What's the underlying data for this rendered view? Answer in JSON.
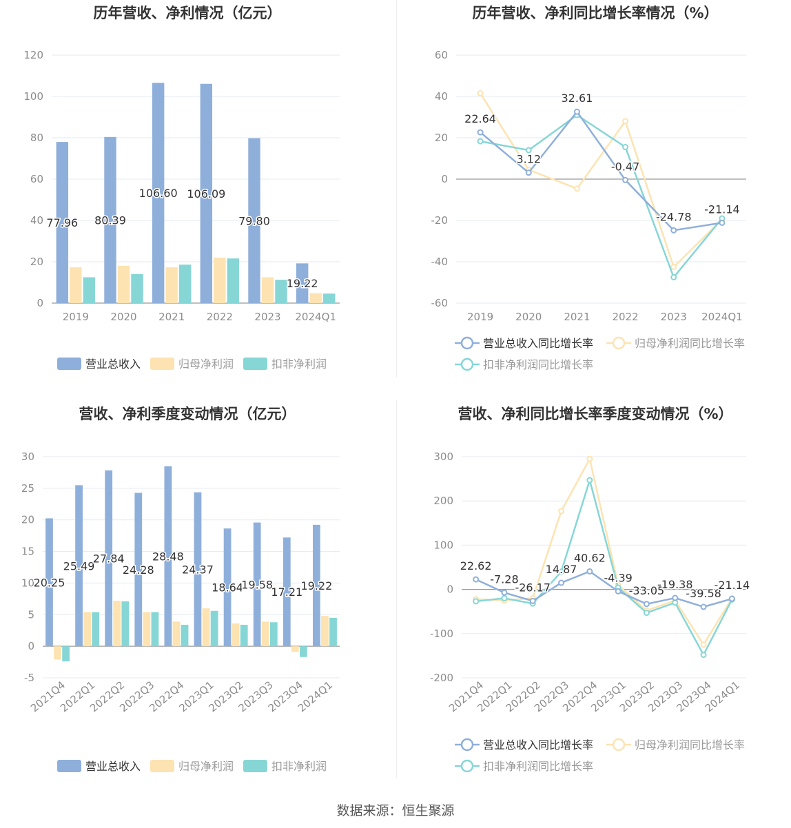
{
  "colors": {
    "revenue": "#8fafdb",
    "net_profit": "#fde3b1",
    "deducted_profit": "#86d6d6",
    "grid": "#e6e9f0",
    "axis_text": "#8c8c8c",
    "title": "#333333",
    "label": "#333333"
  },
  "chart_data": [
    {
      "id": "annual-amounts",
      "type": "bar",
      "title": "历年营收、净利情况（亿元）",
      "categories": [
        "2019",
        "2020",
        "2021",
        "2022",
        "2023",
        "2024Q1"
      ],
      "ylim": [
        0,
        120
      ],
      "yticks": [
        0,
        20,
        40,
        60,
        80,
        100,
        120
      ],
      "series": [
        {
          "name": "营业总收入",
          "color": "#8fafdb",
          "values": [
            77.96,
            80.39,
            106.6,
            106.09,
            79.8,
            19.22
          ],
          "labels": [
            "77.96",
            "80.39",
            "106.60",
            "106.09",
            "79.80",
            "19.22"
          ]
        },
        {
          "name": "归母净利润",
          "color": "#fde3b1",
          "values": [
            17.3,
            18.0,
            17.3,
            22.0,
            12.5,
            4.8
          ]
        },
        {
          "name": "扣非净利润",
          "color": "#86d6d6",
          "values": [
            12.5,
            14.0,
            18.6,
            21.6,
            11.3,
            4.6
          ]
        }
      ]
    },
    {
      "id": "annual-growth",
      "type": "line",
      "title": "历年营收、净利同比增长率情况（%）",
      "categories": [
        "2019",
        "2020",
        "2021",
        "2022",
        "2023",
        "2024Q1"
      ],
      "ylim": [
        -60,
        60
      ],
      "yticks": [
        -60,
        -40,
        -20,
        0,
        20,
        40,
        60
      ],
      "series": [
        {
          "name": "营业总收入同比增长率",
          "color": "#8fafdb",
          "values": [
            22.64,
            3.12,
            32.61,
            -0.47,
            -24.78,
            -21.14
          ],
          "labels": [
            "22.64",
            "3.12",
            "32.61",
            "-0.47",
            "-24.78",
            "-21.14"
          ]
        },
        {
          "name": "归母净利润同比增长率",
          "color": "#fde3b1",
          "values": [
            41.5,
            4.5,
            -4.6,
            28.0,
            -42.5,
            -19.5
          ]
        },
        {
          "name": "扣非净利润同比增长率",
          "color": "#86d6d6",
          "values": [
            18.3,
            14.0,
            31.0,
            15.5,
            -47.5,
            -19.0
          ]
        }
      ]
    },
    {
      "id": "quarterly-amounts",
      "type": "bar",
      "title": "营收、净利季度变动情况（亿元）",
      "categories": [
        "2021Q4",
        "2022Q1",
        "2022Q2",
        "2022Q3",
        "2022Q4",
        "2023Q1",
        "2023Q2",
        "2023Q3",
        "2023Q4",
        "2024Q1"
      ],
      "ylim": [
        -5,
        30
      ],
      "yticks": [
        -5,
        0,
        5,
        10,
        15,
        20,
        25,
        30
      ],
      "series": [
        {
          "name": "营业总收入",
          "color": "#8fafdb",
          "values": [
            20.25,
            25.49,
            27.84,
            24.28,
            28.48,
            24.37,
            18.64,
            19.58,
            17.21,
            19.22
          ],
          "labels": [
            "20.25",
            "25.49",
            "27.84",
            "24.28",
            "28.48",
            "24.37",
            "18.64",
            "19.58",
            "17.21",
            "19.22"
          ]
        },
        {
          "name": "归母净利润",
          "color": "#fde3b1",
          "values": [
            -2.1,
            5.4,
            7.2,
            5.4,
            3.9,
            6.0,
            3.6,
            3.9,
            -0.9,
            4.8
          ]
        },
        {
          "name": "扣非净利润",
          "color": "#86d6d6",
          "values": [
            -2.4,
            5.4,
            7.1,
            5.4,
            3.4,
            5.6,
            3.4,
            3.8,
            -1.7,
            4.5
          ]
        }
      ]
    },
    {
      "id": "quarterly-growth",
      "type": "line",
      "title": "营收、净利同比增长率季度变动情况（%）",
      "categories": [
        "2021Q4",
        "2022Q1",
        "2022Q2",
        "2022Q3",
        "2022Q4",
        "2023Q1",
        "2023Q2",
        "2023Q3",
        "2023Q4",
        "2024Q1"
      ],
      "ylim": [
        -200,
        300
      ],
      "yticks": [
        -200,
        -100,
        0,
        100,
        200,
        300
      ],
      "series": [
        {
          "name": "营业总收入同比增长率",
          "color": "#8fafdb",
          "values": [
            22.62,
            -7.28,
            -26.17,
            14.87,
            40.62,
            -4.39,
            -33.05,
            -19.38,
            -39.58,
            -21.14
          ],
          "labels": [
            "22.62",
            "-7.28",
            "-26.17",
            "14.87",
            "40.62",
            "-4.39",
            "-33.05",
            "-19.38",
            "-39.58",
            "-21.14"
          ]
        },
        {
          "name": "归母净利润同比增长率",
          "color": "#fde3b1",
          "values": [
            -22,
            -25,
            -20,
            177,
            295,
            10,
            -48,
            -25,
            -125,
            -20
          ]
        },
        {
          "name": "扣非净利润同比增长率",
          "color": "#86d6d6",
          "values": [
            -27,
            -20,
            -32,
            40,
            247,
            4,
            -53,
            -30,
            -148,
            -23
          ]
        }
      ]
    }
  ],
  "footer": {
    "source": "数据来源：恒生聚源"
  }
}
